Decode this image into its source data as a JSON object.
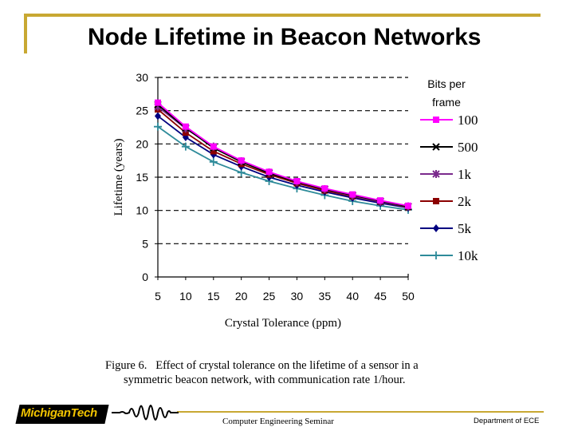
{
  "slide": {
    "title": "Node Lifetime in Beacon Networks"
  },
  "chart_data": {
    "type": "line",
    "xlabel": "Crystal Tolerance (ppm)",
    "ylabel": "Lifetime (years)",
    "x": [
      5,
      10,
      15,
      20,
      25,
      30,
      35,
      40,
      45,
      50
    ],
    "xlim": [
      5,
      50
    ],
    "ylim": [
      0,
      30
    ],
    "yticks": [
      0,
      5,
      10,
      15,
      20,
      25,
      30
    ],
    "grid": "dashed horizontal",
    "legend_title": "Bits per frame",
    "series": [
      {
        "name": "100",
        "color": "#ff00ff",
        "marker": "square",
        "values": [
          26.2,
          22.6,
          19.6,
          17.5,
          15.8,
          14.4,
          13.3,
          12.4,
          11.5,
          10.7
        ]
      },
      {
        "name": "500",
        "color": "#000000",
        "marker": "x",
        "values": [
          25.9,
          22.4,
          19.4,
          17.3,
          15.6,
          14.3,
          13.2,
          12.3,
          11.4,
          10.6
        ]
      },
      {
        "name": "1k",
        "color": "#7a2a8c",
        "marker": "star",
        "values": [
          25.6,
          22.3,
          19.6,
          17.4,
          15.7,
          14.3,
          13.2,
          12.2,
          11.3,
          10.6
        ]
      },
      {
        "name": "2k",
        "color": "#8b0000",
        "marker": "square",
        "values": [
          25.2,
          21.7,
          18.9,
          17.0,
          15.4,
          14.1,
          13.0,
          12.1,
          11.3,
          10.5
        ]
      },
      {
        "name": "5k",
        "color": "#000080",
        "marker": "diamond",
        "values": [
          24.2,
          21.0,
          18.4,
          16.6,
          15.0,
          13.8,
          12.8,
          11.9,
          11.1,
          10.4
        ]
      },
      {
        "name": "10k",
        "color": "#2e8b9a",
        "marker": "plus",
        "values": [
          22.6,
          19.6,
          17.3,
          15.7,
          14.4,
          13.3,
          12.3,
          11.4,
          10.7,
          10.1
        ]
      }
    ],
    "caption": {
      "label": "Figure 6.",
      "line1": "Effect of crystal tolerance on the lifetime of a sensor in a",
      "line2": "symmetric beacon network, with communication rate 1/hour."
    }
  },
  "footer": {
    "logo_text": "MichiganTech",
    "center": "Computer Engineering Seminar",
    "right": "Department of ECE"
  }
}
